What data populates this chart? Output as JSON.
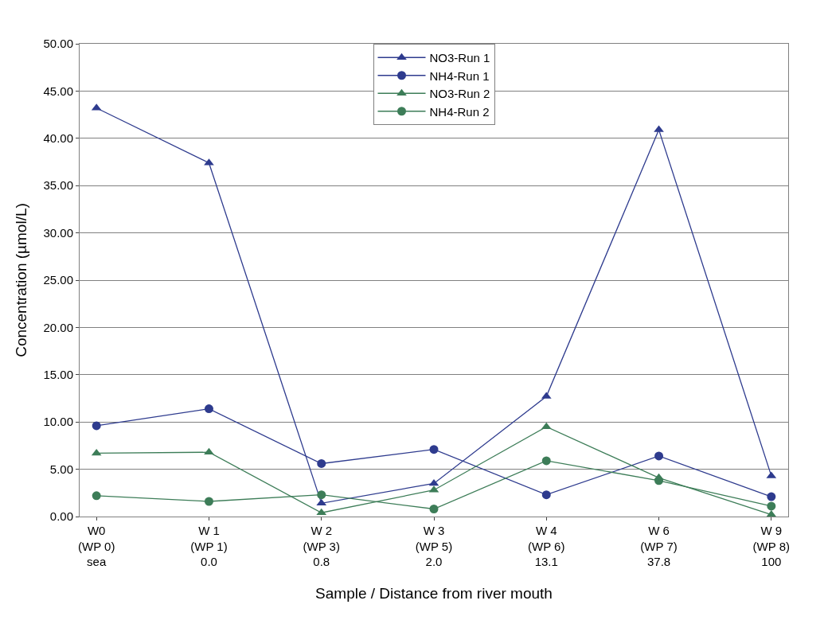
{
  "chart_data": {
    "type": "line",
    "xlabel": "Sample / Distance from river mouth",
    "ylabel": "Concentration (µmol/L)",
    "categories": [
      "W0\n(WP 0)\nsea",
      "W 1\n(WP 1)\n0.0",
      "W 2\n(WP 3)\n0.8",
      "W 3\n(WP 5)\n2.0",
      "W 4\n(WP 6)\n13.1",
      "W 6\n(WP 7)\n37.8",
      "W 9\n(WP 8)\n100"
    ],
    "series": [
      {
        "name": "NO3-Run 1",
        "color": "#2e3b8e",
        "marker": "triangle",
        "values": [
          43.2,
          37.4,
          1.4,
          3.5,
          12.7,
          40.9,
          4.3
        ]
      },
      {
        "name": "NH4-Run 1",
        "color": "#2e3b8e",
        "marker": "circle",
        "values": [
          9.6,
          11.4,
          5.6,
          7.1,
          2.3,
          6.4,
          2.1
        ]
      },
      {
        "name": "NO3-Run 2",
        "color": "#3d7d58",
        "marker": "triangle",
        "values": [
          6.7,
          6.8,
          0.4,
          2.8,
          9.5,
          4.1,
          0.2
        ]
      },
      {
        "name": "NH4-Run 2",
        "color": "#3d7d58",
        "marker": "circle",
        "values": [
          2.2,
          1.6,
          2.3,
          0.8,
          5.9,
          3.8,
          1.1
        ]
      }
    ],
    "ylim": [
      0,
      50
    ],
    "yticks": [
      {
        "value": 0,
        "label": "0.00"
      },
      {
        "value": 5,
        "label": "5.00"
      },
      {
        "value": 10,
        "label": "10.00"
      },
      {
        "value": 15,
        "label": "15.00"
      },
      {
        "value": 20,
        "label": "20.00"
      },
      {
        "value": 25,
        "label": "25.00"
      },
      {
        "value": 30,
        "label": "30.00"
      },
      {
        "value": 35,
        "label": "35.00"
      },
      {
        "value": 40,
        "label": "40.00"
      },
      {
        "value": 45,
        "label": "45.00"
      },
      {
        "value": 50,
        "label": "50.00"
      }
    ],
    "grid": "y",
    "legend": "top",
    "line_style": "solid"
  }
}
